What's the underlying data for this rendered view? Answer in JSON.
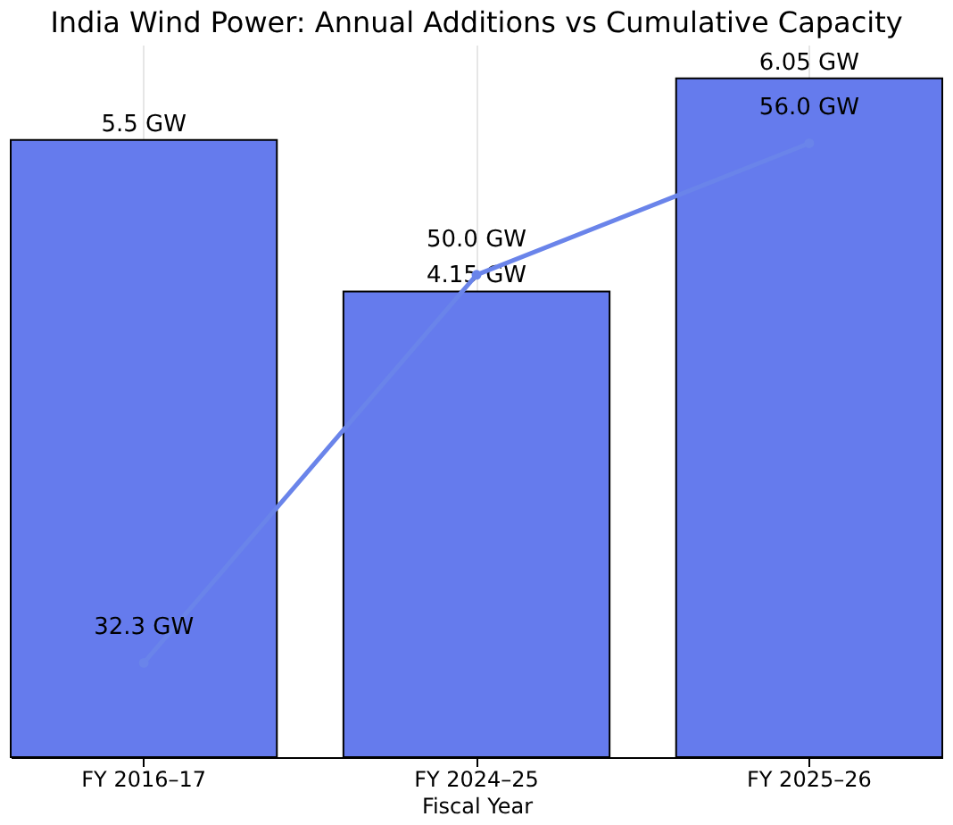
{
  "chart_data": {
    "type": "bar",
    "title": "India Wind Power: Annual Additions vs Cumulative Capacity",
    "xlabel": "Fiscal Year",
    "categories": [
      "FY 2016–17",
      "FY 2024–25",
      "FY 2025–26"
    ],
    "series": [
      {
        "color": "#657bed",
        "values": [
          5.5,
          4.15,
          6.05
        ],
        "value_labels": [
          "5.5 GW",
          "4.15 GW",
          "6.05 GW"
        ]
      },
      {
        "type": "line",
        "axis": "y2",
        "color": "#6a84ea",
        "values": [
          32.3,
          50.0,
          56.0
        ],
        "value_labels": [
          "32.3 GW",
          "50.0 GW",
          "56.0 GW"
        ]
      }
    ],
    "ylim": [
      0,
      6.35
    ],
    "y2lim": [
      28,
      60.5
    ],
    "tick_labels": "x",
    "grid": "x",
    "marker": "circle",
    "line_style": "solid"
  }
}
